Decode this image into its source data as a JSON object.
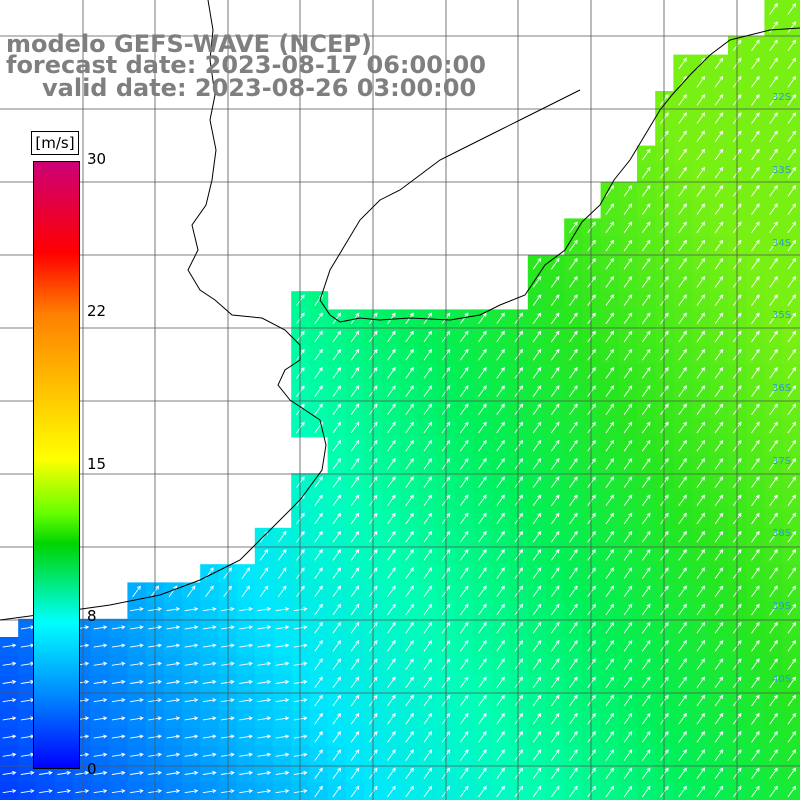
{
  "title": {
    "line1": "modelo GEFS-WAVE (NCEP)",
    "line2": "forecast date: 2023-08-17 06:00:00",
    "line3": "valid date: 2023-08-26 03:00:00"
  },
  "colorbar": {
    "unit": "[m/s]",
    "ticks": [
      "30",
      "22",
      "15",
      "8",
      "0"
    ],
    "range": [
      0,
      30
    ]
  },
  "lat_labels": [
    "32S",
    "33S",
    "34S",
    "35S",
    "36S",
    "37S",
    "38S",
    "39S",
    "40S"
  ],
  "colors": {
    "land": "#ffffff",
    "coastline": "#000000",
    "grid": "#555555",
    "arrows": "#ffffff",
    "title": "#7f7f7f"
  },
  "field": {
    "variable": "wind speed",
    "arrow_direction": "northeast"
  }
}
